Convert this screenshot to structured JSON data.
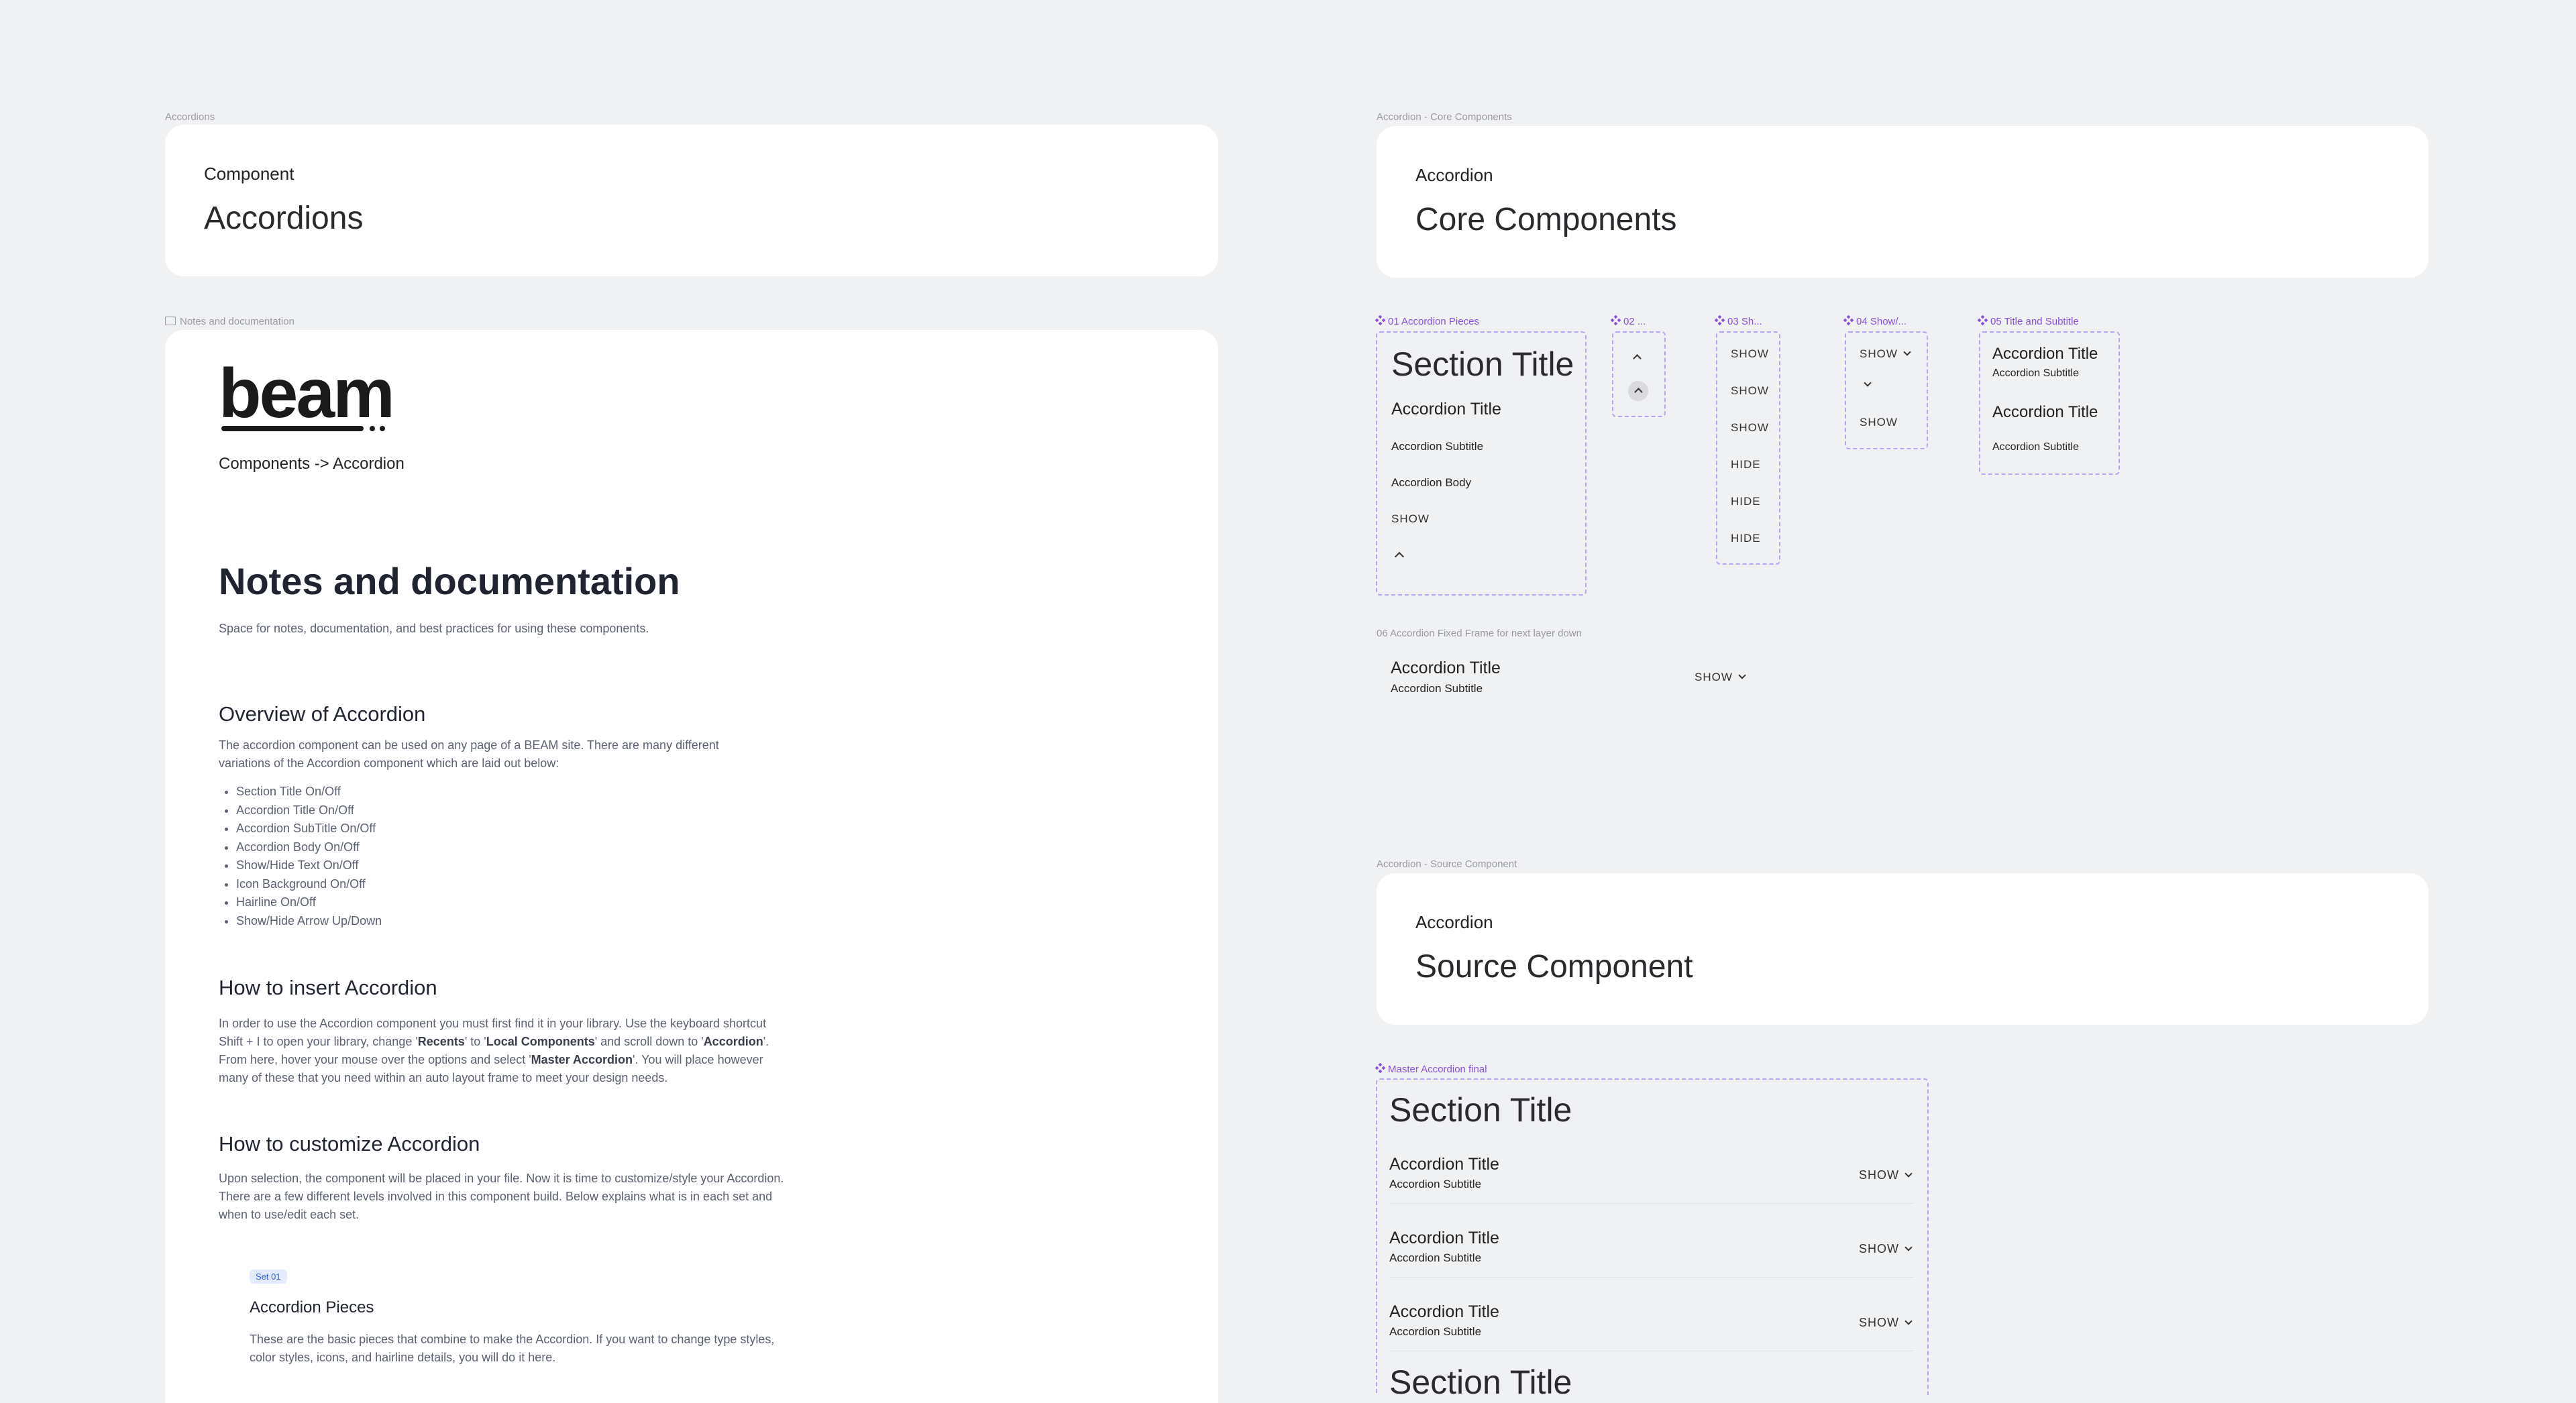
{
  "frames": {
    "accordions": "Accordions",
    "notes": "Notes and documentation",
    "core": "Accordion - Core Components",
    "fixed_frame": "06 Accordion Fixed Frame for next layer down",
    "source": "Accordion - Source Component"
  },
  "card_accordions": {
    "eyebrow": "Component",
    "title": "Accordions"
  },
  "card_core": {
    "eyebrow": "Accordion",
    "title": "Core Components"
  },
  "card_source": {
    "eyebrow": "Accordion",
    "title": "Source Component"
  },
  "doc": {
    "logo": "beam",
    "breadcrumb": "Components -> Accordion",
    "title": "Notes and documentation",
    "subtitle": "Space for notes, documentation, and best practices for using these components.",
    "overview_heading": "Overview of Accordion",
    "overview_text": "The accordion component can be used on any page of a BEAM site. There are many different variations of the Accordion component which are laid out below:",
    "overview_items": [
      "Section Title On/Off",
      "Accordion Title On/Off",
      "Accordion SubTitle On/Off",
      "Accordion Body On/Off",
      "Show/Hide Text On/Off",
      "Icon Background On/Off",
      "Hairline On/Off",
      "Show/Hide Arrow Up/Down"
    ],
    "insert_heading": "How to insert Accordion",
    "insert_text_1": "In order to use the Accordion component you must first find it in your library. Use the keyboard shortcut Shift + I to open your library, change '",
    "insert_bold_1": "Recents",
    "insert_text_2": "' to '",
    "insert_bold_2": "Local Components",
    "insert_text_3": "' and scroll down to '",
    "insert_bold_3": "Accordion",
    "insert_text_4": "'. From here, hover your mouse over the options and select '",
    "insert_bold_4": "Master Accordion",
    "insert_text_5": "'. You will place however many of these that you need within an auto layout frame to meet your design needs.",
    "customize_heading": "How to customize Accordion",
    "customize_text": "Upon selection, the component will be placed in your file. Now it is time to customize/style your Accordion. There are a few different levels involved in this component build. Below explains what is in each set and when to use/edit each set.",
    "set_badge": "Set 01",
    "set_heading": "Accordion Pieces",
    "set_text": "These are the basic pieces that combine to make the Accordion. If you want to change type styles, color styles, icons, and hairline details, you will do it here."
  },
  "core": {
    "c01": {
      "label": "01 Accordion Pieces",
      "section_title": "Section Title",
      "accordion_title": "Accordion Title",
      "accordion_subtitle": "Accordion Subtitle",
      "accordion_body": "Accordion Body",
      "show": "SHOW"
    },
    "c02": {
      "label": "02 ..."
    },
    "c03": {
      "label": "03 Sh...",
      "items": [
        "SHOW",
        "SHOW",
        "SHOW",
        "HIDE",
        "HIDE",
        "HIDE"
      ]
    },
    "c04": {
      "label": "04 Show/...",
      "show_1": "SHOW",
      "show_2": "SHOW"
    },
    "c05": {
      "label": "05 Title and Subtitle",
      "title_1": "Accordion Title",
      "subtitle_1": "Accordion Subtitle",
      "title_2": "Accordion Title",
      "subtitle_2": "Accordion Subtitle"
    },
    "fixed": {
      "title": "Accordion Title",
      "subtitle": "Accordion Subtitle",
      "show": "SHOW"
    }
  },
  "master": {
    "label": "Master Accordion final",
    "section_title": "Section Title",
    "rows": [
      {
        "title": "Accordion Title",
        "subtitle": "Accordion Subtitle",
        "action": "SHOW"
      },
      {
        "title": "Accordion Title",
        "subtitle": "Accordion Subtitle",
        "action": "SHOW"
      },
      {
        "title": "Accordion Title",
        "subtitle": "Accordion Subtitle",
        "action": "SHOW"
      }
    ],
    "section_title_2": "Section Title"
  },
  "colors": {
    "canvas": "#f0f1f3",
    "component_purple": "#8b4fe0",
    "dash": "#b7a3f3"
  }
}
